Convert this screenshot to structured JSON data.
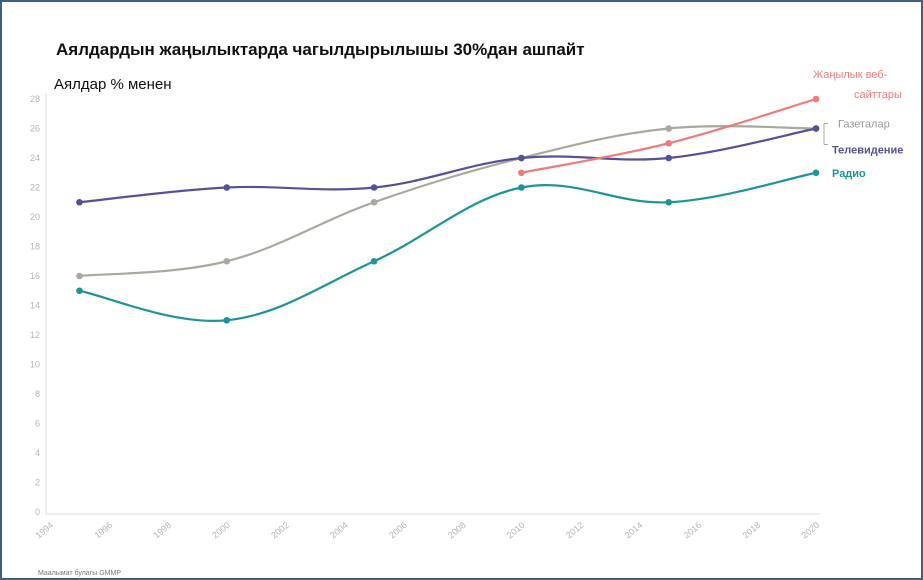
{
  "chart_data": {
    "type": "line",
    "title": "Аялдардын жаңылыктарда чагылдырылышы 30%дан ашпайт",
    "ylabel": "Аялдар % менен",
    "xlabel": "",
    "xlim": [
      1994,
      2020
    ],
    "ylim": [
      0,
      28
    ],
    "x_ticks": [
      "1994",
      "1996",
      "1998",
      "2000",
      "2002",
      "2004",
      "2006",
      "2008",
      "2010",
      "2012",
      "2014",
      "2016",
      "2018",
      "2020"
    ],
    "y_ticks": [
      "0",
      "2",
      "4",
      "6",
      "8",
      "10",
      "12",
      "14",
      "16",
      "18",
      "20",
      "22",
      "24",
      "26",
      "28"
    ],
    "grid": false,
    "legend": "inline-right",
    "series": [
      {
        "name": "Газеталар",
        "color": "#aaa9a0",
        "x": [
          1995,
          2000,
          2005,
          2010,
          2015,
          2020
        ],
        "y": [
          16,
          17,
          21,
          24,
          26,
          26
        ]
      },
      {
        "name": "Телевидение",
        "color": "#55519a",
        "x": [
          1995,
          2000,
          2005,
          2010,
          2015,
          2020
        ],
        "y": [
          21,
          22,
          22,
          24,
          24,
          26
        ]
      },
      {
        "name": "Радио",
        "color": "#1f9599",
        "x": [
          1995,
          2000,
          2005,
          2010,
          2015,
          2020
        ],
        "y": [
          15,
          13,
          17,
          22,
          21,
          23
        ]
      },
      {
        "name": "Жаңылык веб-сайттары",
        "color": "#f07b7b",
        "x": [
          2010,
          2015,
          2020
        ],
        "y": [
          23,
          25,
          28
        ]
      }
    ],
    "source": "Маалымат булагы GMMP"
  }
}
